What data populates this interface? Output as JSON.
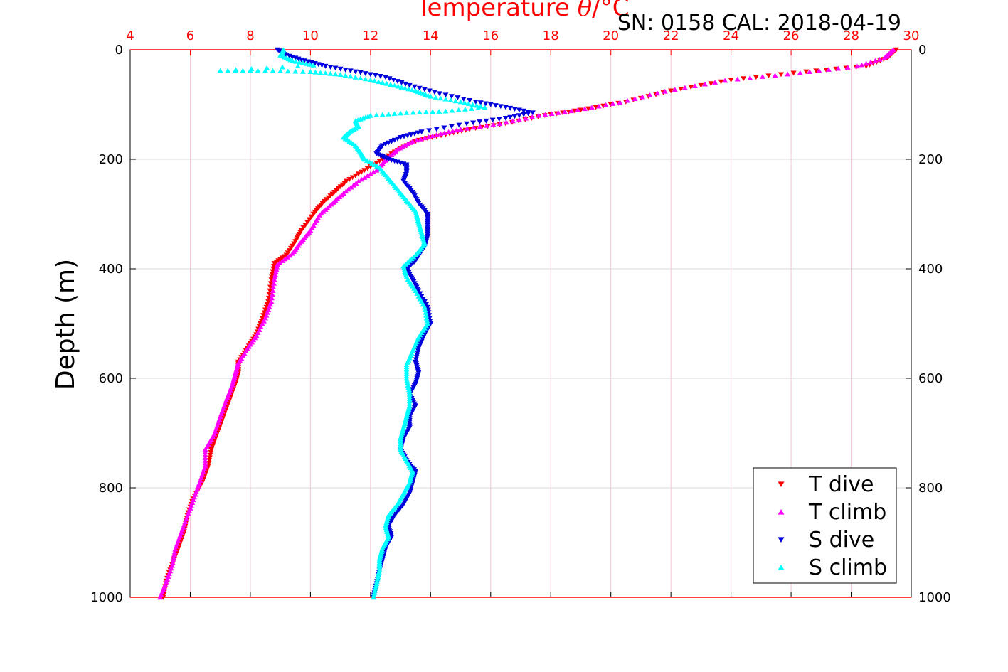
{
  "header": {
    "title_prefix": "Temperature ",
    "title_symbol": "θ",
    "title_suffix": "/°C",
    "serial_cal": "SN: 0158  CAL: 2018-04-19"
  },
  "colors": {
    "t_dive": "#ff0000",
    "t_climb": "#ff00ff",
    "s_dive": "#0000dd",
    "s_climb": "#00ffff",
    "grid": "#d9d9d9",
    "x_grid": "#f2c6d4",
    "axis_top": "#ff0000"
  },
  "chart_data": {
    "type": "scatter",
    "title": "Temperature θ/°C",
    "ylabel": "Depth (m)",
    "xlim": [
      4,
      30
    ],
    "ylim": [
      0,
      1000
    ],
    "y_reversed": true,
    "x_ticks": [
      4,
      6,
      8,
      10,
      12,
      14,
      16,
      18,
      20,
      22,
      24,
      26,
      28,
      30
    ],
    "y_ticks": [
      0,
      200,
      400,
      600,
      800,
      1000
    ],
    "grid": true,
    "legend_position": "bottom-right",
    "series": [
      {
        "name": "T dive",
        "marker": "triangle-down",
        "points": [
          [
            29.5,
            0
          ],
          [
            29.2,
            15
          ],
          [
            28.5,
            30
          ],
          [
            26.5,
            40
          ],
          [
            24,
            55
          ],
          [
            22,
            75
          ],
          [
            20.5,
            95
          ],
          [
            19,
            110
          ],
          [
            17.8,
            120
          ],
          [
            16.5,
            135
          ],
          [
            15.3,
            145
          ],
          [
            14.5,
            155
          ],
          [
            13.6,
            165
          ],
          [
            13,
            180
          ],
          [
            12.4,
            200
          ],
          [
            11.8,
            220
          ],
          [
            11.2,
            240
          ],
          [
            10.8,
            260
          ],
          [
            10.4,
            280
          ],
          [
            10.1,
            300
          ],
          [
            9.7,
            330
          ],
          [
            9.5,
            350
          ],
          [
            9.2,
            375
          ],
          [
            8.8,
            390
          ],
          [
            8.7,
            420
          ],
          [
            8.6,
            460
          ],
          [
            8.4,
            490
          ],
          [
            8.2,
            520
          ],
          [
            7.9,
            545
          ],
          [
            7.6,
            570
          ],
          [
            7.6,
            590
          ],
          [
            7.5,
            610
          ],
          [
            7.3,
            640
          ],
          [
            7.1,
            670
          ],
          [
            6.9,
            700
          ],
          [
            6.7,
            730
          ],
          [
            6.6,
            760
          ],
          [
            6.4,
            790
          ],
          [
            6.1,
            820
          ],
          [
            5.9,
            850
          ],
          [
            5.8,
            880
          ],
          [
            5.6,
            910
          ],
          [
            5.4,
            940
          ],
          [
            5.2,
            970
          ],
          [
            5.1,
            1000
          ]
        ]
      },
      {
        "name": "T climb",
        "marker": "triangle-up",
        "points": [
          [
            29.4,
            0
          ],
          [
            29.1,
            15
          ],
          [
            28.2,
            30
          ],
          [
            26.3,
            42
          ],
          [
            23.8,
            56
          ],
          [
            21.8,
            76
          ],
          [
            20.3,
            96
          ],
          [
            18.9,
            110
          ],
          [
            17.6,
            120
          ],
          [
            16.3,
            135
          ],
          [
            15,
            145
          ],
          [
            14.2,
            155
          ],
          [
            13.4,
            167
          ],
          [
            12.9,
            182
          ],
          [
            12.5,
            202
          ],
          [
            12.2,
            220
          ],
          [
            11.6,
            240
          ],
          [
            11.1,
            262
          ],
          [
            10.7,
            282
          ],
          [
            10.3,
            302
          ],
          [
            10,
            330
          ],
          [
            9.7,
            350
          ],
          [
            9.4,
            372
          ],
          [
            8.9,
            392
          ],
          [
            8.8,
            420
          ],
          [
            8.7,
            460
          ],
          [
            8.5,
            490
          ],
          [
            8.2,
            522
          ],
          [
            7.9,
            546
          ],
          [
            7.6,
            572
          ],
          [
            7.5,
            592
          ],
          [
            7.4,
            612
          ],
          [
            7.2,
            640
          ],
          [
            7,
            670
          ],
          [
            6.8,
            702
          ],
          [
            6.5,
            730
          ],
          [
            6.5,
            760
          ],
          [
            6.3,
            792
          ],
          [
            6.1,
            822
          ],
          [
            5.9,
            852
          ],
          [
            5.7,
            882
          ],
          [
            5.5,
            912
          ],
          [
            5.4,
            942
          ],
          [
            5.2,
            972
          ],
          [
            5,
            1000
          ]
        ]
      },
      {
        "name": "S dive",
        "marker": "triangle-down",
        "points": [
          [
            8.9,
            0
          ],
          [
            9.2,
            10
          ],
          [
            9.8,
            20
          ],
          [
            10.5,
            30
          ],
          [
            11.5,
            40
          ],
          [
            12.5,
            50
          ],
          [
            13.3,
            65
          ],
          [
            14.3,
            80
          ],
          [
            15.5,
            95
          ],
          [
            16.5,
            105
          ],
          [
            17.4,
            115
          ],
          [
            16.5,
            125
          ],
          [
            15.2,
            135
          ],
          [
            13.7,
            150
          ],
          [
            13,
            160
          ],
          [
            12.4,
            175
          ],
          [
            12.2,
            190
          ],
          [
            12.6,
            200
          ],
          [
            13.2,
            210
          ],
          [
            13.2,
            225
          ],
          [
            13.1,
            240
          ],
          [
            13.4,
            260
          ],
          [
            13.6,
            280
          ],
          [
            13.9,
            300
          ],
          [
            13.9,
            320
          ],
          [
            13.9,
            340
          ],
          [
            13.8,
            360
          ],
          [
            13.5,
            385
          ],
          [
            13.2,
            400
          ],
          [
            13.4,
            420
          ],
          [
            13.6,
            440
          ],
          [
            13.9,
            470
          ],
          [
            14,
            500
          ],
          [
            13.8,
            520
          ],
          [
            13.6,
            545
          ],
          [
            13.5,
            570
          ],
          [
            13.6,
            590
          ],
          [
            13.5,
            610
          ],
          [
            13.3,
            630
          ],
          [
            13.5,
            650
          ],
          [
            13.3,
            670
          ],
          [
            13.3,
            690
          ],
          [
            13.1,
            710
          ],
          [
            13,
            730
          ],
          [
            13.2,
            750
          ],
          [
            13.5,
            770
          ],
          [
            13.4,
            790
          ],
          [
            13.3,
            810
          ],
          [
            13.1,
            830
          ],
          [
            12.8,
            850
          ],
          [
            12.6,
            870
          ],
          [
            12.7,
            890
          ],
          [
            12.5,
            910
          ],
          [
            12.4,
            930
          ],
          [
            12.3,
            950
          ],
          [
            12.2,
            975
          ],
          [
            12.1,
            1000
          ]
        ]
      },
      {
        "name": "S climb",
        "marker": "triangle-up",
        "points": [
          [
            9.1,
            0
          ],
          [
            9,
            10
          ],
          [
            9.4,
            20
          ],
          [
            10.1,
            28
          ],
          [
            7,
            38
          ],
          [
            8.5,
            38
          ],
          [
            10,
            40
          ],
          [
            11,
            45
          ],
          [
            12,
            55
          ],
          [
            12.8,
            65
          ],
          [
            13.5,
            75
          ],
          [
            14,
            85
          ],
          [
            15,
            95
          ],
          [
            15.8,
            105
          ],
          [
            14.5,
            112
          ],
          [
            13.2,
            115
          ],
          [
            12,
            120
          ],
          [
            11.5,
            130
          ],
          [
            11.6,
            140
          ],
          [
            11.3,
            150
          ],
          [
            11.1,
            160
          ],
          [
            11.5,
            175
          ],
          [
            11.7,
            190
          ],
          [
            11.8,
            200
          ],
          [
            12.3,
            215
          ],
          [
            12.6,
            235
          ],
          [
            12.9,
            255
          ],
          [
            13.2,
            275
          ],
          [
            13.5,
            295
          ],
          [
            13.6,
            315
          ],
          [
            13.7,
            335
          ],
          [
            13.8,
            355
          ],
          [
            13.5,
            375
          ],
          [
            13.1,
            395
          ],
          [
            13.2,
            415
          ],
          [
            13.5,
            440
          ],
          [
            13.8,
            470
          ],
          [
            13.9,
            500
          ],
          [
            13.6,
            525
          ],
          [
            13.4,
            550
          ],
          [
            13.2,
            575
          ],
          [
            13.2,
            600
          ],
          [
            13.3,
            625
          ],
          [
            13.3,
            650
          ],
          [
            13.2,
            670
          ],
          [
            13.1,
            690
          ],
          [
            13,
            710
          ],
          [
            13,
            730
          ],
          [
            13.2,
            750
          ],
          [
            13.4,
            770
          ],
          [
            13.3,
            790
          ],
          [
            13.1,
            810
          ],
          [
            12.9,
            830
          ],
          [
            12.6,
            850
          ],
          [
            12.5,
            870
          ],
          [
            12.6,
            890
          ],
          [
            12.4,
            910
          ],
          [
            12.3,
            930
          ],
          [
            12.3,
            950
          ],
          [
            12.2,
            975
          ],
          [
            12.1,
            1000
          ]
        ]
      }
    ]
  }
}
